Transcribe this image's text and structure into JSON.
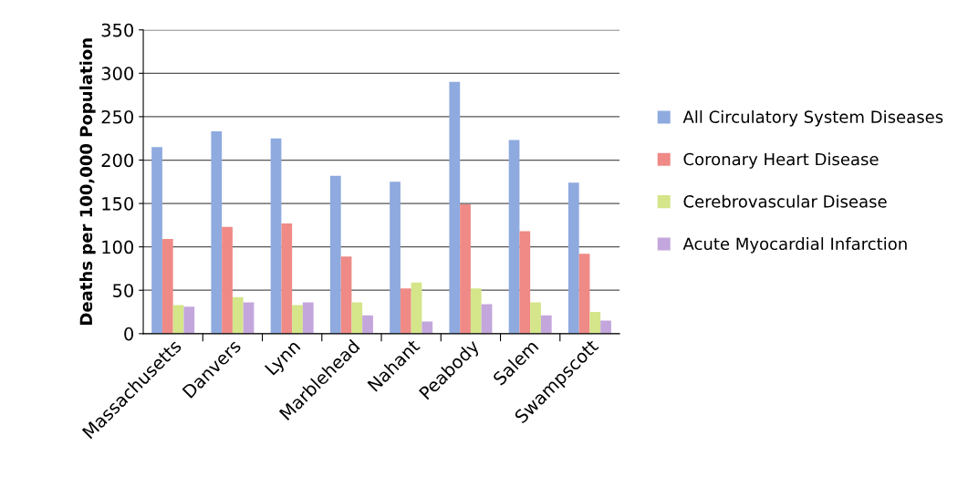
{
  "chart_data": {
    "type": "bar",
    "ylabel": "Deaths per 100,000 Population",
    "categories": [
      "Massachusetts",
      "Danvers",
      "Lynn",
      "Marblehead",
      "Nahant",
      "Peabody",
      "Salem",
      "Swampscott"
    ],
    "series": [
      {
        "name": "All Circulatory System Diseases",
        "color": "#8eaadf",
        "values": [
          215,
          233,
          225,
          182,
          175,
          290,
          223,
          174
        ]
      },
      {
        "name": "Coronary Heart Disease",
        "color": "#ef8a86",
        "values": [
          109,
          123,
          127,
          89,
          52,
          149,
          118,
          92
        ]
      },
      {
        "name": "Cerebrovascular Disease",
        "color": "#d4e58a",
        "values": [
          33,
          42,
          33,
          36,
          59,
          52,
          36,
          25
        ]
      },
      {
        "name": "Acute Myocardial Infarction",
        "color": "#c3a6dc",
        "values": [
          31,
          36,
          36,
          21,
          14,
          34,
          21,
          15
        ]
      }
    ],
    "ylim": [
      0,
      350
    ],
    "yticks": [
      0,
      50,
      100,
      150,
      200,
      250,
      300,
      350
    ],
    "grid": "y",
    "legend": "right"
  }
}
